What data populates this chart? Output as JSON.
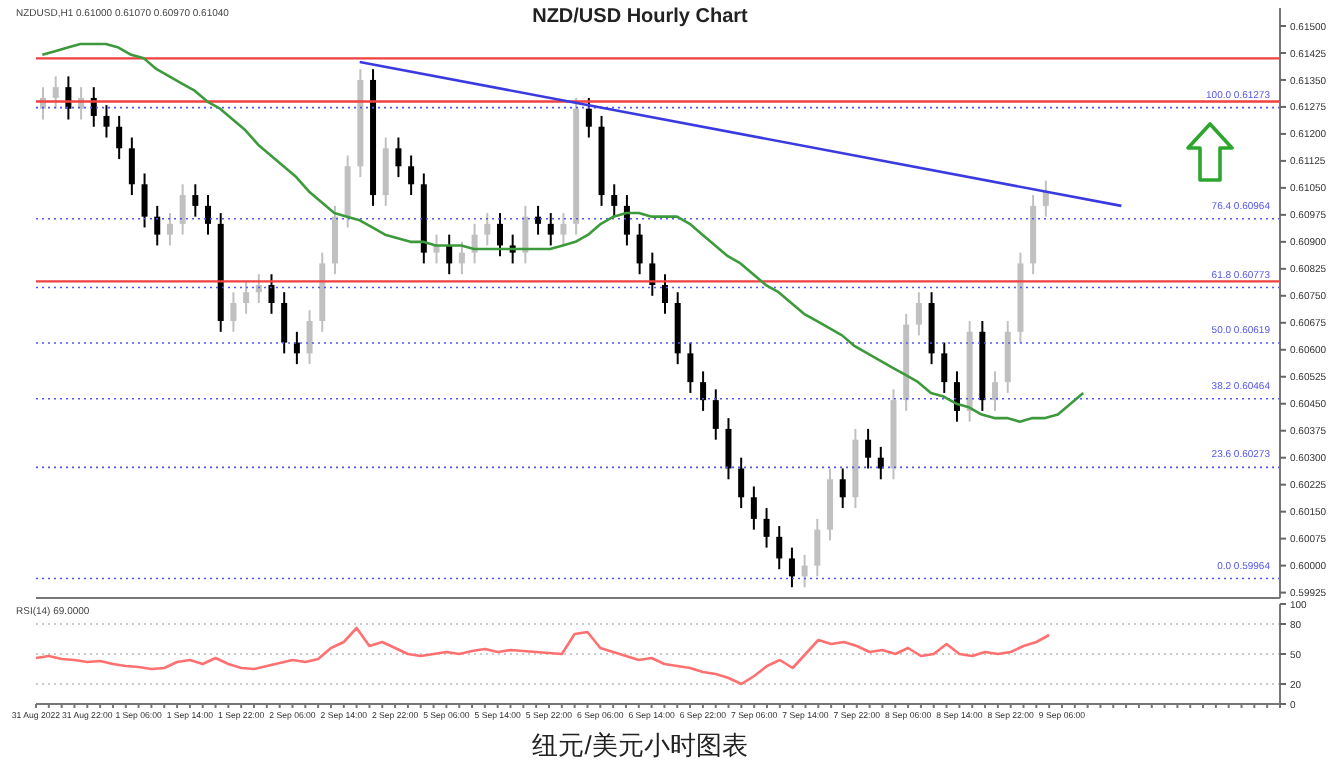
{
  "chart_data": [
    {
      "type": "candlestick",
      "title": "NZD/USD Hourly Chart",
      "subtitle": "NZDUSD,H1 0.61000 0.61070 0.60970 0.61040",
      "annotations": [
        "纽元/美元小时图表"
      ],
      "tick_labels": "y",
      "categories": [
        null,
        null,
        null,
        null,
        null,
        null,
        null,
        null,
        null,
        null,
        null,
        null,
        null,
        null,
        null,
        null,
        null,
        null,
        null,
        null,
        null,
        null,
        null,
        null,
        null,
        null,
        null,
        null,
        null,
        null,
        null,
        null,
        null,
        null,
        null,
        null,
        null,
        null,
        null,
        null,
        null,
        null,
        null,
        null,
        null,
        null,
        null,
        null,
        null,
        null,
        null,
        null,
        null,
        null,
        null,
        null,
        null,
        null,
        null,
        null,
        null,
        null,
        null,
        null,
        null,
        null,
        null,
        null,
        null,
        null,
        null,
        null,
        null,
        null,
        null,
        null,
        null,
        null,
        null,
        null,
        null,
        null,
        null,
        null,
        null,
        null,
        null,
        null,
        null,
        null,
        null,
        null,
        null,
        null,
        null,
        null,
        null,
        null
      ],
      "ylim": [
        0.5991,
        0.6155
      ],
      "yticks": [
        0.59925,
        {
          "value": 0.6,
          "label": "0.60000"
        },
        0.60075,
        {
          "value": 0.6015,
          "label": "0.60150"
        },
        0.60225,
        {
          "value": 0.603,
          "label": "0.60300"
        },
        0.60375,
        {
          "value": 0.6045,
          "label": "0.60450"
        },
        0.60525,
        {
          "value": 0.606,
          "label": "0.60600"
        },
        0.60675,
        {
          "value": 0.6075,
          "label": "0.60750"
        },
        0.60825,
        {
          "value": 0.609,
          "label": "0.60900"
        },
        0.60975,
        {
          "value": 0.6105,
          "label": "0.61050"
        },
        0.61125,
        {
          "value": 0.612,
          "label": "0.61200"
        },
        0.61275,
        {
          "value": 0.6135,
          "label": "0.61350"
        },
        0.61425,
        {
          "value": 0.615,
          "label": "0.61500"
        }
      ],
      "ref_lines": [
        {
          "axis": "y",
          "value": 0.6141,
          "color": "#f04040"
        },
        {
          "axis": "y",
          "value": 0.6129,
          "color": "#f04040"
        },
        {
          "axis": "y",
          "value": 0.6079,
          "color": "#f04040"
        },
        {
          "axis": "y",
          "value": 0.61273,
          "label": "100.0 0.61273",
          "color": "#5555ee",
          "line_style": "dotted"
        },
        {
          "axis": "y",
          "value": 0.60964,
          "label": "76.4 0.60964",
          "color": "#5555ee",
          "line_style": "dotted"
        },
        {
          "axis": "y",
          "value": 0.60773,
          "label": "61.8 0.60773",
          "color": "#5555ee",
          "line_style": "dotted"
        },
        {
          "axis": "y",
          "value": 0.60619,
          "label": "50.0 0.60619",
          "color": "#5555ee",
          "line_style": "dotted"
        },
        {
          "axis": "y",
          "value": 0.60464,
          "label": "38.2 0.60464",
          "color": "#5555ee",
          "line_style": "dotted"
        },
        {
          "axis": "y",
          "value": 0.60273,
          "label": "23.6 0.60273",
          "color": "#5555ee",
          "line_style": "dotted"
        },
        {
          "axis": "y",
          "value": 0.59964,
          "label": "0.0 0.59964",
          "color": "#5555ee",
          "line_style": "dotted"
        }
      ],
      "series": [
        {
          "colors": [
            "#c0c0c0",
            "#c0c0c0",
            "#000000",
            "#c0c0c0",
            "#000000",
            "#000000",
            "#000000",
            "#000000",
            "#000000",
            "#000000",
            "#c0c0c0",
            "#c0c0c0",
            "#000000",
            "#000000",
            "#000000",
            "#c0c0c0",
            "#c0c0c0",
            "#c0c0c0",
            "#000000",
            "#000000",
            "#000000",
            "#c0c0c0",
            "#c0c0c0",
            "#c0c0c0",
            "#c0c0c0",
            "#c0c0c0",
            "#000000",
            "#c0c0c0",
            "#000000",
            "#000000",
            "#000000",
            "#c0c0c0",
            "#000000",
            "#c0c0c0",
            "#c0c0c0",
            "#c0c0c0",
            "#000000",
            "#000000",
            "#c0c0c0",
            "#000000",
            "#000000",
            "#c0c0c0",
            "#c0c0c0",
            "#000000",
            "#000000",
            "#000000",
            "#000000",
            "#000000",
            "#000000",
            "#000000",
            "#000000",
            "#000000",
            "#000000",
            "#000000",
            "#000000",
            "#000000",
            "#000000",
            "#000000",
            "#000000",
            "#000000",
            "#c0c0c0",
            "#c0c0c0",
            "#c0c0c0",
            "#000000",
            "#c0c0c0",
            "#000000",
            "#000000",
            "#c0c0c0",
            "#c0c0c0",
            "#c0c0c0",
            "#000000",
            "#000000",
            "#000000",
            "#c0c0c0",
            "#000000",
            "#c0c0c0",
            "#c0c0c0",
            "#c0c0c0",
            "#c0c0c0",
            "#c0c0c0",
            null,
            null,
            null,
            null,
            null,
            null,
            null,
            null,
            null,
            null,
            null,
            null,
            null,
            null,
            null,
            null,
            null,
            null
          ],
          "ohlc": [
            [
              0.6127,
              0.6133,
              0.6124,
              0.613
            ],
            [
              0.613,
              0.6136,
              0.6127,
              0.6133
            ],
            [
              0.6133,
              0.6136,
              0.6124,
              0.6127
            ],
            [
              0.6127,
              0.6133,
              0.6124,
              0.613
            ],
            [
              0.613,
              0.6133,
              0.6122,
              0.6125
            ],
            [
              0.6125,
              0.6128,
              0.6119,
              0.6122
            ],
            [
              0.6122,
              0.6125,
              0.6113,
              0.6116
            ],
            [
              0.6116,
              0.6119,
              0.6103,
              0.6106
            ],
            [
              0.6106,
              0.6109,
              0.6094,
              0.6097
            ],
            [
              0.6097,
              0.61,
              0.6089,
              0.6092
            ],
            [
              0.6092,
              0.6098,
              0.6089,
              0.6095
            ],
            [
              0.6095,
              0.6106,
              0.6092,
              0.6103
            ],
            [
              0.6103,
              0.6106,
              0.6097,
              0.61
            ],
            [
              0.61,
              0.6103,
              0.6092,
              0.6095
            ],
            [
              0.6095,
              0.6098,
              0.6065,
              0.6068
            ],
            [
              0.6068,
              0.6076,
              0.6065,
              0.6073
            ],
            [
              0.6073,
              0.6079,
              0.607,
              0.6076
            ],
            [
              0.6076,
              0.6081,
              0.6073,
              0.6078
            ],
            [
              0.6078,
              0.6081,
              0.607,
              0.6073
            ],
            [
              0.6073,
              0.6076,
              0.6059,
              0.6062
            ],
            [
              0.6062,
              0.6065,
              0.6056,
              0.6059
            ],
            [
              0.6059,
              0.6071,
              0.6056,
              0.6068
            ],
            [
              0.6068,
              0.6087,
              0.6065,
              0.6084
            ],
            [
              0.6084,
              0.61,
              0.6081,
              0.6097
            ],
            [
              0.6097,
              0.6114,
              0.6094,
              0.6111
            ],
            [
              0.6111,
              0.6138,
              0.6108,
              0.6135
            ],
            [
              0.6135,
              0.6138,
              0.61,
              0.6103
            ],
            [
              0.6103,
              0.6119,
              0.61,
              0.6116
            ],
            [
              0.6116,
              0.6119,
              0.6108,
              0.6111
            ],
            [
              0.6111,
              0.6114,
              0.6103,
              0.6106
            ],
            [
              0.6106,
              0.6109,
              0.6084,
              0.6087
            ],
            [
              0.6087,
              0.6092,
              0.6084,
              0.6089
            ],
            [
              0.6089,
              0.6092,
              0.6081,
              0.6084
            ],
            [
              0.6084,
              0.609,
              0.6081,
              0.6087
            ],
            [
              0.6087,
              0.6095,
              0.6084,
              0.6092
            ],
            [
              0.6092,
              0.6098,
              0.6089,
              0.6095
            ],
            [
              0.6095,
              0.6098,
              0.6086,
              0.6089
            ],
            [
              0.6089,
              0.6092,
              0.6084,
              0.6087
            ],
            [
              0.6087,
              0.61,
              0.6084,
              0.6097
            ],
            [
              0.6097,
              0.61,
              0.6092,
              0.6095
            ],
            [
              0.6095,
              0.6098,
              0.6089,
              0.6092
            ],
            [
              0.6092,
              0.6098,
              0.6089,
              0.6095
            ],
            [
              0.6095,
              0.613,
              0.6092,
              0.6127
            ],
            [
              0.6127,
              0.613,
              0.6119,
              0.6122
            ],
            [
              0.6122,
              0.6125,
              0.61,
              0.6103
            ],
            [
              0.6103,
              0.6106,
              0.6097,
              0.61
            ],
            [
              0.61,
              0.6103,
              0.6089,
              0.6092
            ],
            [
              0.6092,
              0.6095,
              0.6081,
              0.6084
            ],
            [
              0.6084,
              0.6087,
              0.6075,
              0.6078
            ],
            [
              0.6078,
              0.6081,
              0.607,
              0.6073
            ],
            [
              0.6073,
              0.6076,
              0.6056,
              0.6059
            ],
            [
              0.6059,
              0.6062,
              0.6048,
              0.6051
            ],
            [
              0.6051,
              0.6054,
              0.6043,
              0.6046
            ],
            [
              0.6046,
              0.6049,
              0.6035,
              0.6038
            ],
            [
              0.6038,
              0.6041,
              0.6024,
              0.6027
            ],
            [
              0.6027,
              0.603,
              0.6016,
              0.6019
            ],
            [
              0.6019,
              0.6022,
              0.601,
              0.6013
            ],
            [
              0.6013,
              0.6016,
              0.6005,
              0.6008
            ],
            [
              0.6008,
              0.6011,
              0.5999,
              0.6002
            ],
            [
              0.6002,
              0.6005,
              0.5994,
              0.5997
            ],
            [
              0.5997,
              0.6003,
              0.5994,
              0.6
            ],
            [
              0.6,
              0.6013,
              0.5997,
              0.601
            ],
            [
              0.601,
              0.6027,
              0.6007,
              0.6024
            ],
            [
              0.6024,
              0.6027,
              0.6016,
              0.6019
            ],
            [
              0.6019,
              0.6038,
              0.6016,
              0.6035
            ],
            [
              0.6035,
              0.6038,
              0.6027,
              0.603
            ],
            [
              0.603,
              0.6033,
              0.6024,
              0.6027
            ],
            [
              0.6027,
              0.6049,
              0.6024,
              0.6046
            ],
            [
              0.6046,
              0.607,
              0.6043,
              0.6067
            ],
            [
              0.6067,
              0.6076,
              0.6064,
              0.6073
            ],
            [
              0.6073,
              0.6076,
              0.6056,
              0.6059
            ],
            [
              0.6059,
              0.6062,
              0.6048,
              0.6051
            ],
            [
              0.6051,
              0.6054,
              0.604,
              0.6043
            ],
            [
              0.6043,
              0.6068,
              0.604,
              0.6065
            ],
            [
              0.6065,
              0.6068,
              0.6043,
              0.6046
            ],
            [
              0.6046,
              0.6054,
              0.6043,
              0.6051
            ],
            [
              0.6051,
              0.6068,
              0.6048,
              0.6065
            ],
            [
              0.6065,
              0.6087,
              0.6062,
              0.6084
            ],
            [
              0.6084,
              0.6103,
              0.6081,
              0.61
            ],
            [
              0.61,
              0.6107,
              0.6097,
              0.6104
            ],
            null,
            null,
            null,
            null,
            null,
            null,
            null,
            null,
            null,
            null,
            null,
            null,
            null,
            null,
            null,
            null,
            null,
            null
          ]
        },
        {
          "type": "line",
          "color": "#3c9a3c",
          "values": [
            0.6142,
            0.6143,
            0.6144,
            0.6145,
            0.6145,
            0.6145,
            0.6144,
            0.6142,
            0.6141,
            0.6138,
            0.6136,
            0.6134,
            0.6132,
            0.6129,
            0.6127,
            0.6124,
            0.6121,
            0.6117,
            0.6114,
            0.6111,
            0.6108,
            0.6104,
            0.6101,
            0.6098,
            0.6097,
            0.6096,
            0.6094,
            0.6092,
            0.6091,
            0.609,
            0.609,
            0.6089,
            0.6089,
            0.6089,
            0.6088,
            0.6088,
            0.6088,
            0.6088,
            0.6088,
            0.6088,
            0.6088,
            0.6089,
            0.609,
            0.6092,
            0.6095,
            0.6097,
            0.6098,
            0.6098,
            0.6097,
            0.6097,
            0.6097,
            0.6095,
            0.6092,
            0.6089,
            0.6086,
            0.6084,
            0.6081,
            0.6078,
            0.6076,
            0.6073,
            0.607,
            0.6068,
            0.6066,
            0.6064,
            0.6061,
            0.6059,
            0.6057,
            0.6055,
            0.6053,
            0.6051,
            0.6048,
            0.6047,
            0.6045,
            0.6044,
            0.6042,
            0.6041,
            0.6041,
            0.604,
            0.6041,
            0.6041,
            0.6042,
            0.6045,
            0.6048,
            null,
            null,
            null,
            null,
            null,
            null,
            null,
            null,
            null,
            null,
            null,
            null,
            null,
            null,
            null
          ]
        },
        {
          "type": "line",
          "color": "#3a3ae0",
          "values": [
            null,
            null,
            null,
            null,
            null,
            null,
            null,
            null,
            null,
            null,
            null,
            null,
            null,
            null,
            null,
            null,
            null,
            null,
            null,
            null,
            null,
            null,
            null,
            null,
            null,
            0.614,
            null,
            null,
            null,
            null,
            null,
            null,
            null,
            null,
            null,
            null,
            null,
            null,
            null,
            null,
            null,
            null,
            null,
            null,
            null,
            null,
            null,
            null,
            null,
            null,
            null,
            null,
            null,
            null,
            null,
            null,
            null,
            null,
            null,
            null,
            null,
            null,
            null,
            null,
            null,
            null,
            null,
            null,
            null,
            null,
            null,
            null,
            null,
            null,
            null,
            null,
            null,
            null,
            null,
            null,
            null,
            null,
            null,
            null,
            null,
            0.61,
            null,
            null,
            null,
            null,
            null,
            null,
            null,
            null,
            null,
            null,
            null,
            null
          ]
        }
      ]
    },
    {
      "type": "line",
      "title": "RSI(14) 69.0000",
      "categories": [
        "31 Aug 2022",
        null,
        null,
        null,
        "31 Aug 22:00",
        null,
        null,
        null,
        "1 Sep 06:00",
        null,
        null,
        null,
        "1 Sep 14:00",
        null,
        null,
        null,
        "1 Sep 22:00",
        null,
        null,
        null,
        "2 Sep 06:00",
        null,
        null,
        null,
        "2 Sep 14:00",
        null,
        null,
        null,
        "2 Sep 22:00",
        null,
        null,
        null,
        "5 Sep 06:00",
        null,
        null,
        null,
        "5 Sep 14:00",
        null,
        null,
        null,
        "5 Sep 22:00",
        null,
        null,
        null,
        "6 Sep 06:00",
        null,
        null,
        null,
        "6 Sep 14:00",
        null,
        null,
        null,
        "6 Sep 22:00",
        null,
        null,
        null,
        "7 Sep 06:00",
        null,
        null,
        null,
        "7 Sep 14:00",
        null,
        null,
        null,
        "7 Sep 22:00",
        null,
        null,
        null,
        "8 Sep 06:00",
        null,
        null,
        null,
        "8 Sep 14:00",
        null,
        null,
        null,
        "8 Sep 22:00",
        null,
        null,
        null,
        "9 Sep 06:00",
        null,
        null,
        null,
        null,
        null,
        null,
        null,
        null,
        null,
        null,
        null,
        null,
        null,
        null,
        null,
        null,
        null
      ],
      "ylim": [
        0,
        100
      ],
      "yticks": [
        0,
        20,
        50,
        80,
        100
      ],
      "ref_lines": [
        {
          "axis": "y",
          "value": 20,
          "color": "#bbbbbb",
          "line_style": "dotted"
        },
        {
          "axis": "y",
          "value": 50,
          "color": "#bbbbbb",
          "line_style": "dotted"
        },
        {
          "axis": "y",
          "value": 80,
          "color": "#bbbbbb",
          "line_style": "dotted"
        }
      ],
      "series": [
        {
          "color": "#ff7070",
          "values": [
            46,
            48,
            45,
            44,
            42,
            43,
            40,
            38,
            37,
            35,
            36,
            42,
            44,
            40,
            46,
            40,
            36,
            35,
            38,
            41,
            44,
            42,
            45,
            56,
            62,
            76,
            58,
            62,
            56,
            50,
            48,
            50,
            52,
            50,
            53,
            55,
            52,
            54,
            53,
            52,
            51,
            50,
            70,
            72,
            56,
            52,
            48,
            44,
            46,
            40,
            38,
            36,
            32,
            30,
            26,
            20,
            28,
            38,
            44,
            36,
            50,
            64,
            60,
            62,
            58,
            52,
            54,
            50,
            56,
            48,
            50,
            60,
            50,
            48,
            52,
            50,
            52,
            58,
            62,
            69,
            null,
            null,
            null,
            null,
            null,
            null,
            null,
            null,
            null,
            null,
            null,
            null,
            null,
            null,
            null,
            null,
            null,
            null
          ]
        }
      ]
    }
  ]
}
